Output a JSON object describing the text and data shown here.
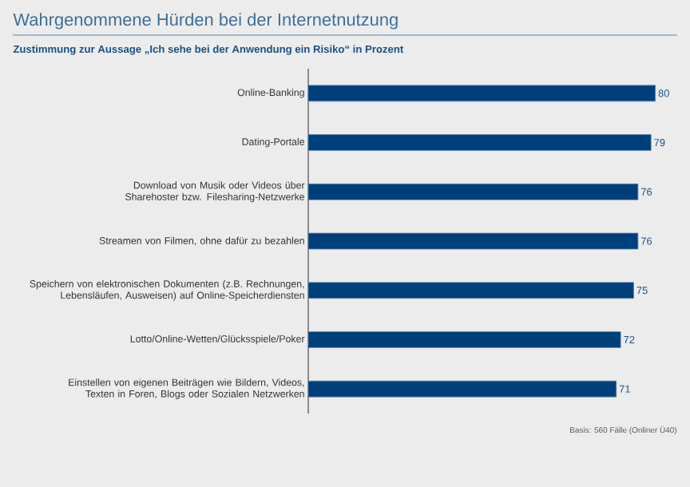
{
  "chart_data": {
    "type": "bar",
    "orientation": "horizontal",
    "title": "Wahrgenommene Hürden bei der Internetnutzung",
    "subtitle": "Zustimmung zur Aussage „Ich sehe bei der Anwendung ein Risiko“ in Prozent",
    "categories": [
      "Online-Banking",
      "Dating-Portale",
      "Download von Musik oder Videos über Sharehoster bzw. Filesharing-Netzwerke",
      "Streamen von Filmen, ohne dafür zu bezahlen",
      "Speichern von elektronischen Dokumenten (z.B. Rechnungen, Lebensläufen, Ausweisen) auf Online-Speicherdiensten",
      "Lotto/Online-Wetten/Glücksspiele/Poker",
      "Einstellen von eigenen Beiträgen wie Bildern, Videos, Texten in Foren, Blogs oder Sozialen Netzwerken"
    ],
    "values": [
      80,
      79,
      76,
      76,
      75,
      72,
      71
    ],
    "color": "#003f7a",
    "data_labels": true,
    "annotations": [
      "Basis: 560 Fälle (Onliner Ü40)"
    ]
  }
}
